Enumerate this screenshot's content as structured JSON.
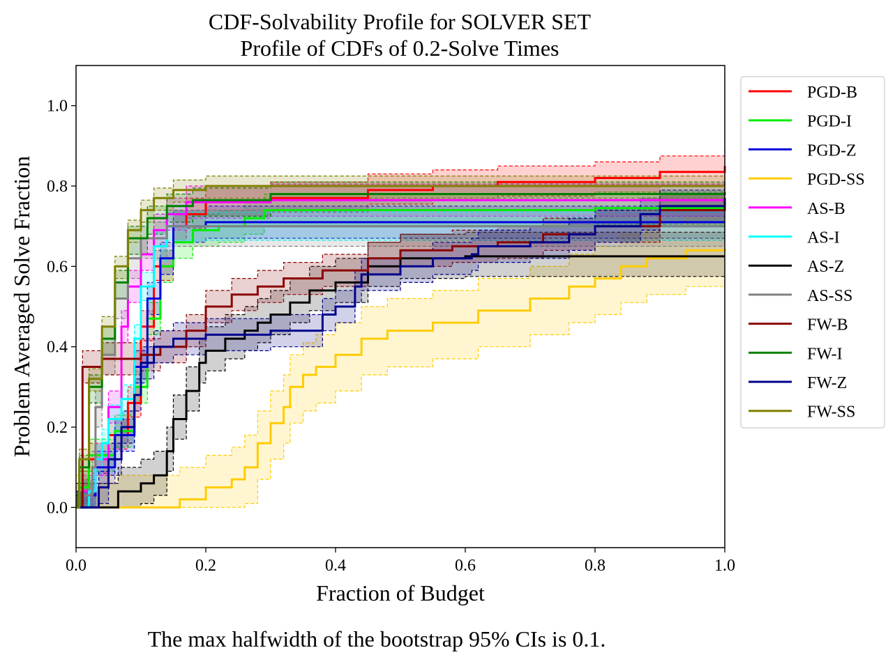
{
  "chart_data": {
    "type": "line",
    "title": "CDF-Solvability Profile for SOLVER SET",
    "subtitle": "Profile of CDFs of 0.2-Solve Times",
    "xlabel": "Fraction of Budget",
    "ylabel": "Problem Averaged Solve Fraction",
    "xlim": [
      0,
      1
    ],
    "ylim": [
      -0.1,
      1.1
    ],
    "x_ticks": [
      0.0,
      0.2,
      0.4,
      0.6,
      0.8,
      1.0
    ],
    "x_tick_labels": [
      "0.0",
      "0.2",
      "0.4",
      "0.6",
      "0.8",
      "1.0"
    ],
    "y_ticks": [
      0.0,
      0.2,
      0.4,
      0.6,
      0.8,
      1.0
    ],
    "y_tick_labels": [
      "0.0",
      "0.2",
      "0.4",
      "0.6",
      "0.8",
      "1.0"
    ],
    "grid": false,
    "legend_position": "outside-right-top",
    "caption": "The max halfwidth of the bootstrap 95% CIs is 0.1.",
    "series": [
      {
        "name": "PGD-B",
        "color": "#ff0000",
        "points": [
          [
            0,
            0
          ],
          [
            0.01,
            0.05
          ],
          [
            0.02,
            0.12
          ],
          [
            0.05,
            0.18
          ],
          [
            0.08,
            0.26
          ],
          [
            0.1,
            0.45
          ],
          [
            0.12,
            0.6
          ],
          [
            0.15,
            0.7
          ],
          [
            0.17,
            0.73
          ],
          [
            0.2,
            0.76
          ],
          [
            0.3,
            0.77
          ],
          [
            0.45,
            0.79
          ],
          [
            0.55,
            0.8
          ],
          [
            0.65,
            0.81
          ],
          [
            0.8,
            0.82
          ],
          [
            0.9,
            0.835
          ],
          [
            1.0,
            0.85
          ]
        ],
        "band": [
          0.035,
          0.04
        ]
      },
      {
        "name": "PGD-I",
        "color": "#00ee00",
        "points": [
          [
            0,
            0
          ],
          [
            0.005,
            0.05
          ],
          [
            0.02,
            0.13
          ],
          [
            0.06,
            0.19
          ],
          [
            0.09,
            0.3
          ],
          [
            0.11,
            0.47
          ],
          [
            0.13,
            0.6
          ],
          [
            0.15,
            0.66
          ],
          [
            0.18,
            0.69
          ],
          [
            0.22,
            0.7
          ],
          [
            0.26,
            0.72
          ],
          [
            0.29,
            0.74
          ],
          [
            0.6,
            0.74
          ],
          [
            0.8,
            0.745
          ],
          [
            1.0,
            0.745
          ]
        ],
        "band": [
          0.04,
          0.04
        ]
      },
      {
        "name": "PGD-Z",
        "color": "#0000dd",
        "points": [
          [
            0,
            0
          ],
          [
            0.01,
            0.03
          ],
          [
            0.03,
            0.1
          ],
          [
            0.06,
            0.18
          ],
          [
            0.09,
            0.35
          ],
          [
            0.11,
            0.52
          ],
          [
            0.13,
            0.62
          ],
          [
            0.15,
            0.7
          ],
          [
            0.2,
            0.71
          ],
          [
            0.6,
            0.71
          ],
          [
            1.0,
            0.71
          ]
        ],
        "band": [
          0.04,
          0.04
        ]
      },
      {
        "name": "PGD-SS",
        "color": "#ffcc00",
        "points": [
          [
            0,
            0
          ],
          [
            0.15,
            0
          ],
          [
            0.16,
            0.02
          ],
          [
            0.2,
            0.05
          ],
          [
            0.24,
            0.07
          ],
          [
            0.26,
            0.1
          ],
          [
            0.28,
            0.16
          ],
          [
            0.3,
            0.21
          ],
          [
            0.32,
            0.25
          ],
          [
            0.33,
            0.3
          ],
          [
            0.35,
            0.33
          ],
          [
            0.37,
            0.35
          ],
          [
            0.4,
            0.38
          ],
          [
            0.44,
            0.42
          ],
          [
            0.48,
            0.44
          ],
          [
            0.55,
            0.46
          ],
          [
            0.62,
            0.49
          ],
          [
            0.7,
            0.52
          ],
          [
            0.76,
            0.55
          ],
          [
            0.8,
            0.57
          ],
          [
            0.84,
            0.6
          ],
          [
            0.88,
            0.62
          ],
          [
            0.94,
            0.64
          ],
          [
            1.0,
            0.645
          ]
        ],
        "band": [
          0.09,
          0.08
        ]
      },
      {
        "name": "AS-B",
        "color": "#ff00ff",
        "points": [
          [
            0,
            0
          ],
          [
            0.01,
            0.04
          ],
          [
            0.03,
            0.12
          ],
          [
            0.05,
            0.25
          ],
          [
            0.07,
            0.45
          ],
          [
            0.08,
            0.55
          ],
          [
            0.1,
            0.63
          ],
          [
            0.12,
            0.69
          ],
          [
            0.14,
            0.73
          ],
          [
            0.17,
            0.76
          ],
          [
            0.3,
            0.765
          ],
          [
            0.6,
            0.765
          ],
          [
            1.0,
            0.77
          ]
        ],
        "band": [
          0.04,
          0.04
        ]
      },
      {
        "name": "AS-I",
        "color": "#00ffff",
        "points": [
          [
            0,
            0
          ],
          [
            0.02,
            0.04
          ],
          [
            0.03,
            0.12
          ],
          [
            0.04,
            0.16
          ],
          [
            0.05,
            0.22
          ],
          [
            0.07,
            0.27
          ],
          [
            0.09,
            0.42
          ],
          [
            0.1,
            0.55
          ],
          [
            0.12,
            0.65
          ],
          [
            0.14,
            0.7
          ],
          [
            0.5,
            0.7
          ],
          [
            1.0,
            0.7
          ]
        ],
        "band": [
          0.035,
          0.035
        ]
      },
      {
        "name": "AS-Z",
        "color": "#000000",
        "points": [
          [
            0,
            0
          ],
          [
            0.06,
            0
          ],
          [
            0.065,
            0.04
          ],
          [
            0.1,
            0.06
          ],
          [
            0.12,
            0.08
          ],
          [
            0.14,
            0.14
          ],
          [
            0.15,
            0.22
          ],
          [
            0.17,
            0.29
          ],
          [
            0.19,
            0.36
          ],
          [
            0.2,
            0.39
          ],
          [
            0.23,
            0.42
          ],
          [
            0.26,
            0.44
          ],
          [
            0.28,
            0.46
          ],
          [
            0.3,
            0.48
          ],
          [
            0.33,
            0.51
          ],
          [
            0.36,
            0.54
          ],
          [
            0.4,
            0.56
          ],
          [
            0.45,
            0.6
          ],
          [
            0.5,
            0.62
          ],
          [
            0.6,
            0.625
          ],
          [
            0.7,
            0.625
          ],
          [
            1.0,
            0.625
          ]
        ],
        "band": [
          0.05,
          0.06
        ]
      },
      {
        "name": "AS-SS",
        "color": "#808080",
        "points": [
          [
            0,
            0
          ],
          [
            0.01,
            0.03
          ],
          [
            0.025,
            0.1
          ],
          [
            0.03,
            0.25
          ],
          [
            0.04,
            0.38
          ],
          [
            0.06,
            0.52
          ],
          [
            0.08,
            0.62
          ],
          [
            0.1,
            0.67
          ],
          [
            0.14,
            0.7
          ],
          [
            0.3,
            0.7
          ],
          [
            1.0,
            0.7
          ]
        ],
        "band": [
          0.05,
          0.04
        ]
      },
      {
        "name": "FW-B",
        "color": "#8b0000",
        "points": [
          [
            0,
            0
          ],
          [
            0.01,
            0.35
          ],
          [
            0.04,
            0.37
          ],
          [
            0.1,
            0.38
          ],
          [
            0.13,
            0.4
          ],
          [
            0.17,
            0.44
          ],
          [
            0.2,
            0.5
          ],
          [
            0.24,
            0.53
          ],
          [
            0.28,
            0.55
          ],
          [
            0.32,
            0.57
          ],
          [
            0.38,
            0.59
          ],
          [
            0.45,
            0.62
          ],
          [
            0.5,
            0.64
          ],
          [
            0.58,
            0.65
          ],
          [
            0.65,
            0.66
          ],
          [
            0.72,
            0.68
          ],
          [
            0.8,
            0.7
          ],
          [
            0.9,
            0.74
          ],
          [
            1.0,
            0.76
          ]
        ],
        "band": [
          0.04,
          0.04
        ]
      },
      {
        "name": "FW-I",
        "color": "#008000",
        "points": [
          [
            0,
            0
          ],
          [
            0.005,
            0.1
          ],
          [
            0.02,
            0.3
          ],
          [
            0.04,
            0.42
          ],
          [
            0.06,
            0.56
          ],
          [
            0.08,
            0.67
          ],
          [
            0.11,
            0.72
          ],
          [
            0.14,
            0.75
          ],
          [
            0.18,
            0.765
          ],
          [
            0.3,
            0.78
          ],
          [
            0.5,
            0.78
          ],
          [
            1.0,
            0.785
          ]
        ],
        "band": [
          0.04,
          0.03
        ]
      },
      {
        "name": "FW-Z",
        "color": "#00008b",
        "points": [
          [
            0,
            0
          ],
          [
            0.03,
            0
          ],
          [
            0.035,
            0.05
          ],
          [
            0.05,
            0.12
          ],
          [
            0.07,
            0.2
          ],
          [
            0.09,
            0.28
          ],
          [
            0.1,
            0.36
          ],
          [
            0.12,
            0.4
          ],
          [
            0.15,
            0.42
          ],
          [
            0.2,
            0.43
          ],
          [
            0.3,
            0.44
          ],
          [
            0.38,
            0.48
          ],
          [
            0.4,
            0.5
          ],
          [
            0.43,
            0.55
          ],
          [
            0.44,
            0.58
          ],
          [
            0.5,
            0.6
          ],
          [
            0.55,
            0.62
          ],
          [
            0.61,
            0.63
          ],
          [
            0.62,
            0.65
          ],
          [
            0.7,
            0.66
          ],
          [
            0.76,
            0.68
          ],
          [
            0.8,
            0.7
          ],
          [
            0.87,
            0.73
          ],
          [
            0.9,
            0.75
          ],
          [
            1.0,
            0.77
          ]
        ],
        "band": [
          0.04,
          0.04
        ]
      },
      {
        "name": "FW-SS",
        "color": "#808000",
        "points": [
          [
            0,
            0
          ],
          [
            0.005,
            0.12
          ],
          [
            0.02,
            0.32
          ],
          [
            0.04,
            0.45
          ],
          [
            0.06,
            0.6
          ],
          [
            0.08,
            0.69
          ],
          [
            0.1,
            0.74
          ],
          [
            0.12,
            0.77
          ],
          [
            0.15,
            0.79
          ],
          [
            0.2,
            0.8
          ],
          [
            0.3,
            0.8
          ],
          [
            1.0,
            0.8
          ]
        ],
        "band": [
          0.03,
          0.025
        ]
      }
    ]
  }
}
